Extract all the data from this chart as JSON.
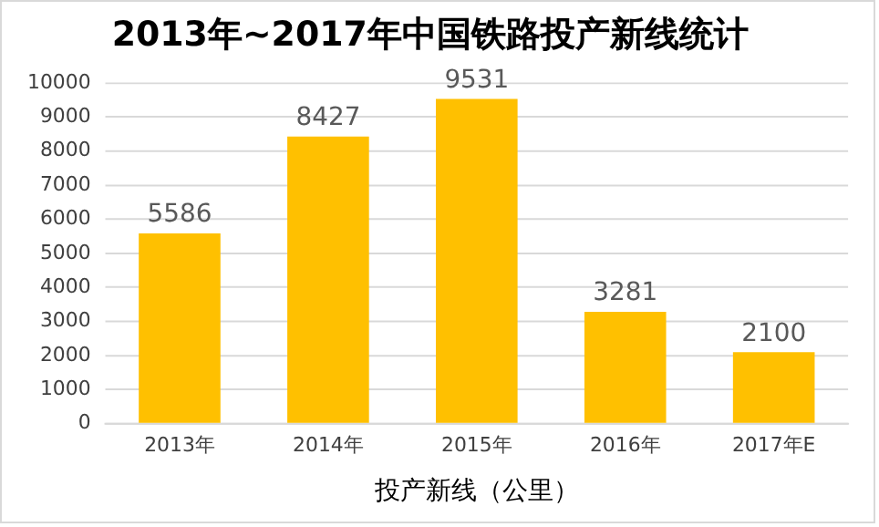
{
  "chart_data": {
    "type": "bar",
    "title": "2013年~2017年中国铁路投产新线统计",
    "xlabel": "投产新线（公里）",
    "categories": [
      "2013年",
      "2014年",
      "2015年",
      "2016年",
      "2017年E"
    ],
    "values": [
      5586,
      8427,
      9531,
      3281,
      2100
    ],
    "color": "#ffc000",
    "ylim": [
      0,
      10000
    ],
    "yticks": [
      0,
      1000,
      2000,
      3000,
      4000,
      5000,
      6000,
      7000,
      8000,
      9000,
      10000
    ],
    "grid": "y",
    "data_labels": true,
    "legend": false
  }
}
